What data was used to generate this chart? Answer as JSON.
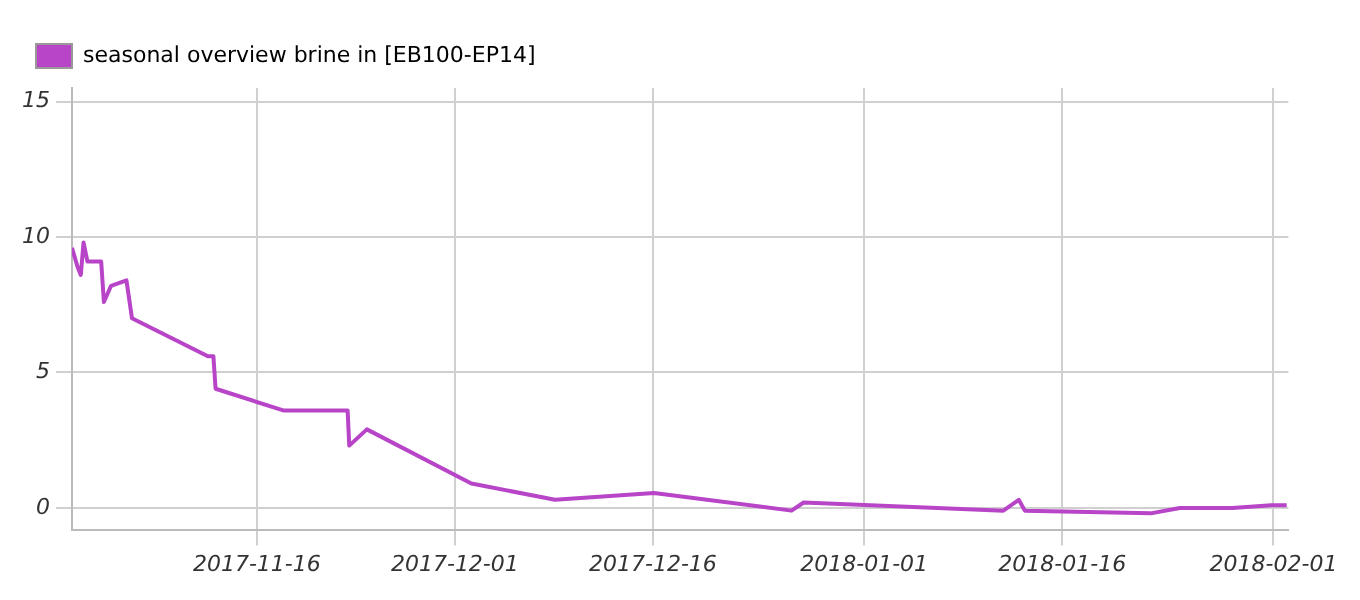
{
  "chart_data": {
    "type": "line",
    "x": [
      "2017-11-02T00:00",
      "2017-11-02T10:00",
      "2017-11-02T16:00",
      "2017-11-02T21:00",
      "2017-11-03T04:00",
      "2017-11-04T05:00",
      "2017-11-04T10:00",
      "2017-11-04T23:00",
      "2017-11-06T03:00",
      "2017-11-06T13:00",
      "2017-11-12T07:00",
      "2017-11-12T17:00",
      "2017-11-12T21:00",
      "2017-11-18T00:00",
      "2017-11-22T21:00",
      "2017-11-23T00:00",
      "2017-11-24T08:00",
      "2017-12-02T06:00",
      "2017-12-08T14:00",
      "2017-12-16T02:00",
      "2017-12-26T12:00",
      "2017-12-27T10:00",
      "2018-01-11T13:00",
      "2018-01-12T17:00",
      "2018-01-13T04:00",
      "2018-01-22T17:00",
      "2018-01-24T22:00",
      "2018-01-28T21:00",
      "2018-01-31T20:00",
      "2018-02-02T00:00"
    ],
    "series": [
      {
        "name": "seasonal overview brine in [EB100-EP14]",
        "color": "#b844c8",
        "values": [
          9.6,
          8.9,
          8.6,
          9.8,
          9.1,
          9.1,
          7.6,
          8.2,
          8.4,
          7.0,
          5.6,
          5.6,
          4.4,
          3.6,
          3.6,
          2.3,
          2.9,
          0.9,
          0.3,
          0.55,
          -0.1,
          0.2,
          -0.1,
          0.3,
          -0.1,
          -0.2,
          0.0,
          0.0,
          0.1,
          0.1
        ]
      }
    ],
    "xlim": [
      "2017-11-02T00:00",
      "2018-02-02T03:00"
    ],
    "xticks": [
      "2017-11-16",
      "2017-12-01",
      "2017-12-16",
      "2018-01-01",
      "2018-01-16",
      "2018-02-01"
    ],
    "ylim": [
      -0.8,
      15.5
    ],
    "yticks": [
      0,
      5,
      10,
      15
    ],
    "grid": true,
    "legend": "top left",
    "marker": "none",
    "line_style": "solid"
  }
}
